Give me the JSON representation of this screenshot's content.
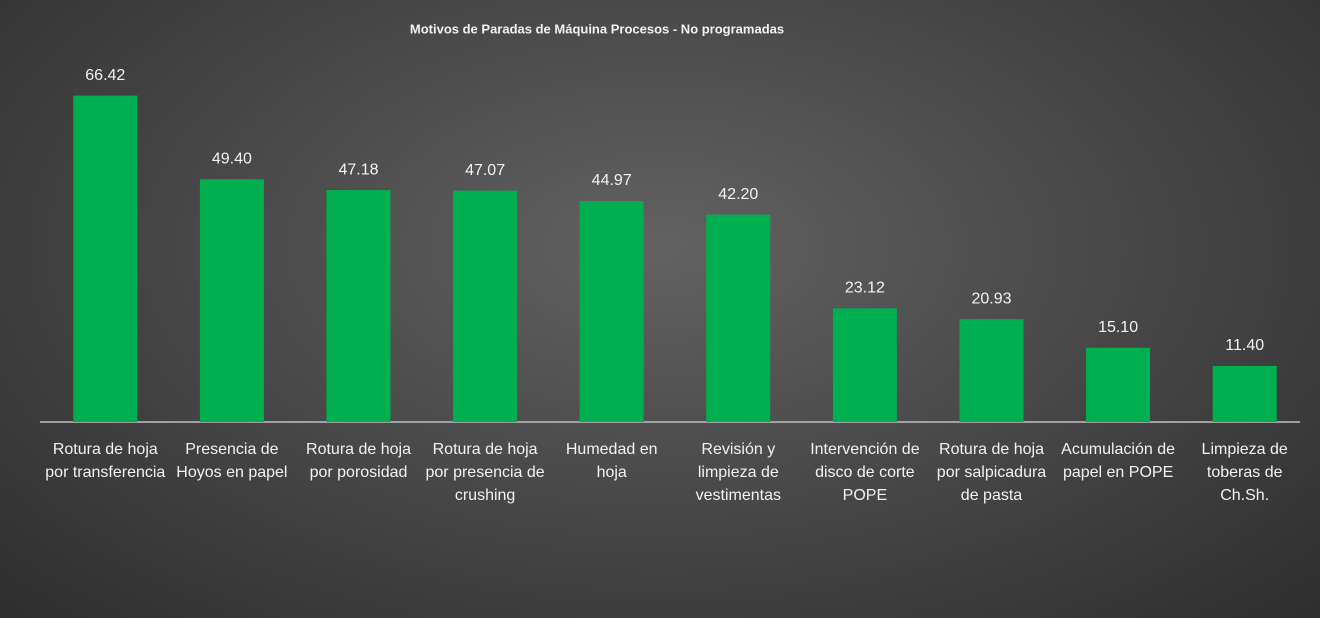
{
  "chart_data": {
    "type": "bar",
    "title": "Motivos de Paradas de Máquina Procesos - No programadas",
    "categories": [
      "Rotura de hoja por transferencia",
      "Presencia de Hoyos en papel",
      "Rotura de hoja por porosidad",
      "Rotura de hoja por presencia de crushing",
      "Humedad en hoja",
      "Revisión y limpieza de vestimentas",
      "Intervención de disco de corte POPE",
      "Rotura de hoja por salpicadura de pasta",
      "Acumulación de papel en POPE",
      "Limpieza de toberas de Ch.Sh."
    ],
    "values": [
      66.42,
      49.4,
      47.18,
      47.07,
      44.97,
      42.2,
      23.12,
      20.93,
      15.1,
      11.4
    ],
    "value_labels": [
      "66.42",
      "49.40",
      "47.18",
      "47.07",
      "44.97",
      "42.20",
      "23.12",
      "20.93",
      "15.10",
      "11.40"
    ],
    "color": "#00b050",
    "ylim": [
      0,
      70
    ]
  }
}
